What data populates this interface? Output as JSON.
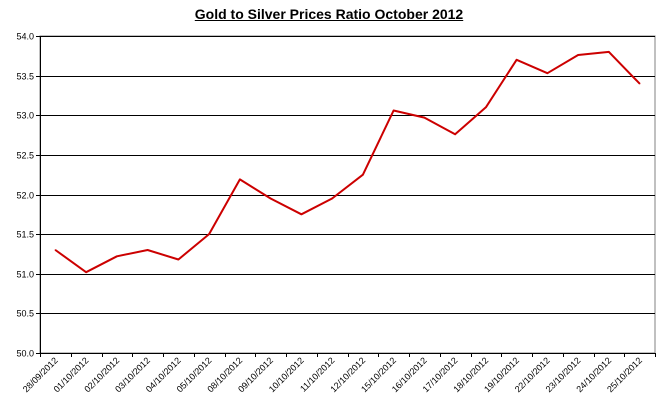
{
  "chart_data": {
    "type": "line",
    "title": "Gold to Silver Prices Ratio October 2012",
    "xlabel": "",
    "ylabel": "",
    "categories": [
      "28/09/2012",
      "01/10/2012",
      "02/10/2012",
      "03/10/2012",
      "04/10/2012",
      "05/10/2012",
      "08/10/2012",
      "09/10/2012",
      "10/10/2012",
      "11/10/2012",
      "12/10/2012",
      "15/10/2012",
      "16/10/2012",
      "17/10/2012",
      "18/10/2012",
      "19/10/2012",
      "22/10/2012",
      "23/10/2012",
      "24/10/2012",
      "25/10/2012"
    ],
    "series": [
      {
        "name": "",
        "color": "#cc0000",
        "values": [
          51.3,
          51.02,
          51.22,
          51.3,
          51.18,
          51.5,
          52.19,
          51.95,
          51.75,
          51.95,
          52.25,
          53.06,
          52.97,
          52.76,
          53.1,
          53.7,
          53.53,
          53.76,
          53.8,
          53.4
        ]
      }
    ],
    "ylim": [
      50.0,
      54.0
    ],
    "yticks": [
      "50.0",
      "50.5",
      "51.0",
      "51.5",
      "52.0",
      "52.5",
      "53.0",
      "53.5",
      "54.0"
    ],
    "grid": "horizontal",
    "legend": "none"
  }
}
